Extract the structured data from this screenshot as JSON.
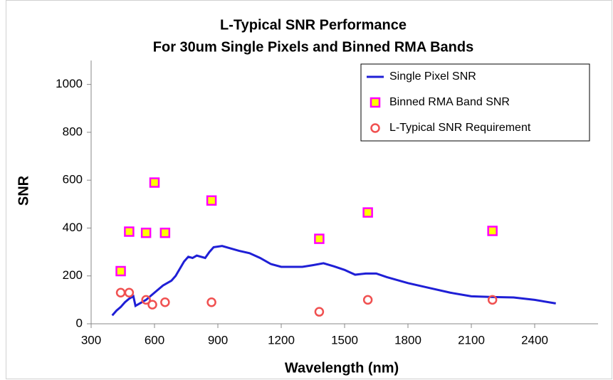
{
  "chart_data": {
    "type": "line",
    "title": "L-Typical SNR Performance",
    "subtitle": "For 30um Single Pixels and Binned RMA Bands",
    "x_label": "Wavelength (nm)",
    "y_label": "SNR",
    "xlim": [
      300,
      2700
    ],
    "xticks": [
      300,
      600,
      900,
      1200,
      1500,
      1800,
      2100,
      2400
    ],
    "ylim": [
      0,
      1100
    ],
    "yticks": [
      0,
      200,
      400,
      600,
      800,
      1000
    ],
    "legend": "top-right",
    "series": [
      {
        "name": "Single Pixel SNR",
        "color": "#1f1fd6",
        "style": "line",
        "x": [
          400,
          420,
          440,
          460,
          480,
          500,
          510,
          530,
          560,
          600,
          640,
          680,
          700,
          740,
          760,
          780,
          800,
          840,
          860,
          880,
          920,
          960,
          1000,
          1050,
          1100,
          1150,
          1200,
          1300,
          1350,
          1400,
          1450,
          1500,
          1550,
          1600,
          1650,
          1700,
          1800,
          1900,
          2000,
          2100,
          2200,
          2300,
          2400,
          2500
        ],
        "values": [
          35,
          55,
          70,
          90,
          105,
          115,
          75,
          85,
          100,
          130,
          160,
          180,
          200,
          260,
          280,
          275,
          285,
          275,
          300,
          320,
          325,
          315,
          305,
          295,
          275,
          250,
          238,
          238,
          245,
          253,
          240,
          225,
          205,
          210,
          210,
          195,
          170,
          150,
          130,
          115,
          112,
          110,
          100,
          85
        ]
      },
      {
        "name": "Binned RMA Band SNR",
        "color": "#ff00ff",
        "style": "square",
        "x": [
          440,
          480,
          560,
          600,
          650,
          870,
          1380,
          1610,
          2200
        ],
        "values": [
          220,
          385,
          380,
          590,
          380,
          515,
          355,
          465,
          388
        ]
      },
      {
        "name": "L-Typical SNR Requirement",
        "color": "#f05050",
        "style": "circle",
        "x": [
          440,
          480,
          560,
          590,
          650,
          870,
          1380,
          1610,
          2200
        ],
        "values": [
          130,
          130,
          100,
          80,
          90,
          90,
          50,
          100,
          100
        ]
      }
    ]
  }
}
